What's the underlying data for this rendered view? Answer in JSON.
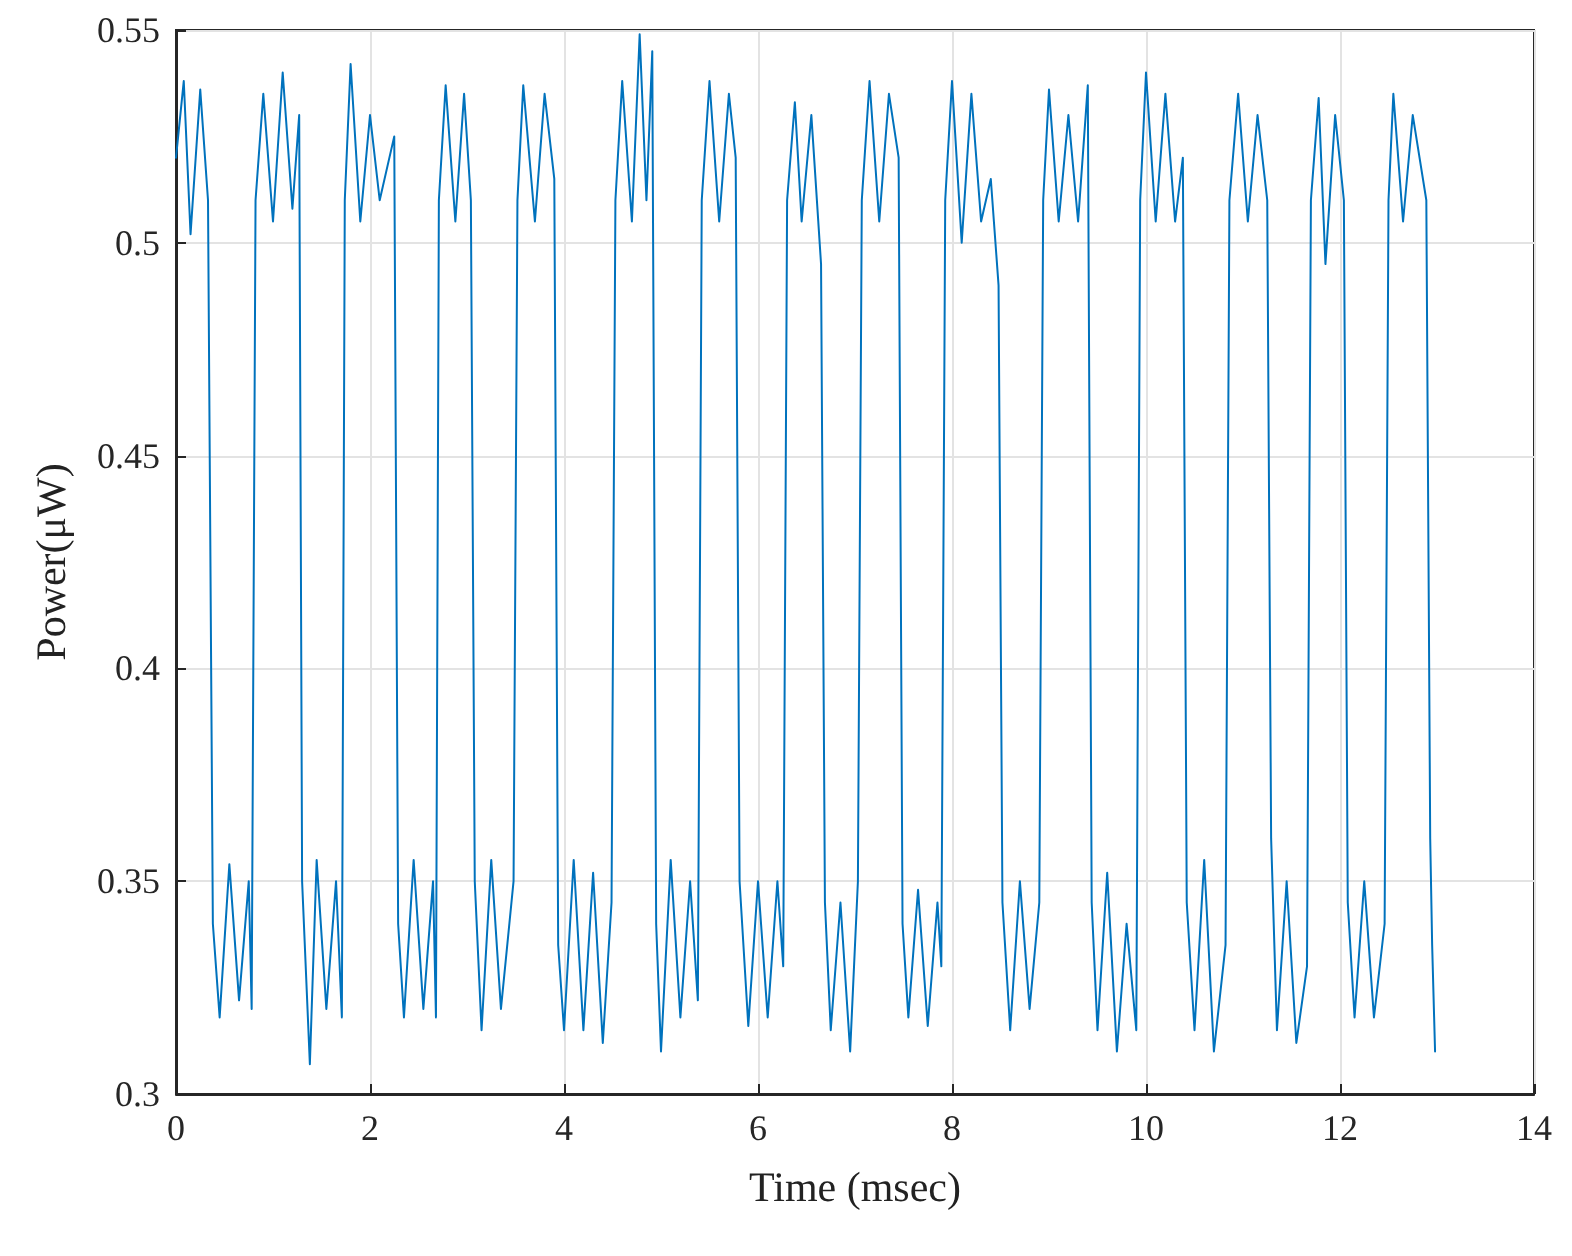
{
  "chart_data": {
    "type": "line",
    "xlabel": "Time (msec)",
    "ylabel": "Power(μW)",
    "x": [
      0,
      0.08,
      0.15,
      0.25,
      0.33,
      0.38,
      0.45,
      0.55,
      0.65,
      0.75,
      0.78,
      0.82,
      0.9,
      1.0,
      1.1,
      1.2,
      1.27,
      1.3,
      1.38,
      1.45,
      1.55,
      1.65,
      1.71,
      1.74,
      1.8,
      1.9,
      2.0,
      2.1,
      2.25,
      2.29,
      2.35,
      2.45,
      2.55,
      2.65,
      2.68,
      2.71,
      2.78,
      2.88,
      2.97,
      3.04,
      3.08,
      3.15,
      3.25,
      3.35,
      3.48,
      3.52,
      3.58,
      3.7,
      3.8,
      3.9,
      3.94,
      4.0,
      4.1,
      4.2,
      4.3,
      4.4,
      4.49,
      4.53,
      4.6,
      4.7,
      4.78,
      4.85,
      4.91,
      4.95,
      5.0,
      5.1,
      5.2,
      5.3,
      5.38,
      5.42,
      5.5,
      5.6,
      5.7,
      5.77,
      5.81,
      5.9,
      6.0,
      6.1,
      6.2,
      6.26,
      6.3,
      6.38,
      6.45,
      6.55,
      6.65,
      6.69,
      6.75,
      6.85,
      6.95,
      7.03,
      7.07,
      7.15,
      7.25,
      7.35,
      7.45,
      7.49,
      7.55,
      7.65,
      7.75,
      7.85,
      7.89,
      7.93,
      8.0,
      8.1,
      8.2,
      8.3,
      8.4,
      8.48,
      8.52,
      8.6,
      8.7,
      8.8,
      8.9,
      8.94,
      9.0,
      9.1,
      9.2,
      9.3,
      9.4,
      9.44,
      9.5,
      9.6,
      9.7,
      9.8,
      9.9,
      9.94,
      10.0,
      10.1,
      10.2,
      10.3,
      10.38,
      10.42,
      10.5,
      10.6,
      10.7,
      10.82,
      10.86,
      10.95,
      11.05,
      11.15,
      11.25,
      11.29,
      11.35,
      11.45,
      11.55,
      11.66,
      11.7,
      11.78,
      11.85,
      11.95,
      12.04,
      12.08,
      12.15,
      12.25,
      12.35,
      12.46,
      12.5,
      12.55,
      12.65,
      12.75,
      12.89,
      12.93,
      12.95,
      12.98
    ],
    "values": [
      0.52,
      0.538,
      0.502,
      0.536,
      0.51,
      0.34,
      0.318,
      0.354,
      0.322,
      0.35,
      0.32,
      0.51,
      0.535,
      0.505,
      0.54,
      0.508,
      0.53,
      0.35,
      0.307,
      0.355,
      0.32,
      0.35,
      0.318,
      0.51,
      0.542,
      0.505,
      0.53,
      0.51,
      0.525,
      0.34,
      0.318,
      0.355,
      0.32,
      0.35,
      0.318,
      0.51,
      0.537,
      0.505,
      0.535,
      0.51,
      0.35,
      0.315,
      0.355,
      0.32,
      0.35,
      0.51,
      0.537,
      0.505,
      0.535,
      0.515,
      0.335,
      0.315,
      0.355,
      0.315,
      0.352,
      0.312,
      0.345,
      0.51,
      0.538,
      0.505,
      0.549,
      0.51,
      0.545,
      0.34,
      0.31,
      0.355,
      0.318,
      0.35,
      0.322,
      0.51,
      0.538,
      0.505,
      0.535,
      0.52,
      0.35,
      0.316,
      0.35,
      0.318,
      0.35,
      0.33,
      0.51,
      0.533,
      0.505,
      0.53,
      0.495,
      0.345,
      0.315,
      0.345,
      0.31,
      0.35,
      0.51,
      0.538,
      0.505,
      0.535,
      0.52,
      0.34,
      0.318,
      0.348,
      0.316,
      0.345,
      0.33,
      0.51,
      0.538,
      0.5,
      0.535,
      0.505,
      0.515,
      0.49,
      0.345,
      0.315,
      0.35,
      0.32,
      0.345,
      0.51,
      0.536,
      0.505,
      0.53,
      0.505,
      0.537,
      0.345,
      0.315,
      0.352,
      0.31,
      0.34,
      0.315,
      0.51,
      0.54,
      0.505,
      0.535,
      0.505,
      0.52,
      0.345,
      0.315,
      0.355,
      0.31,
      0.335,
      0.51,
      0.535,
      0.505,
      0.53,
      0.51,
      0.36,
      0.315,
      0.35,
      0.312,
      0.33,
      0.51,
      0.534,
      0.495,
      0.53,
      0.51,
      0.345,
      0.318,
      0.35,
      0.318,
      0.34,
      0.51,
      0.535,
      0.505,
      0.53,
      0.51,
      0.36,
      0.335,
      0.31
    ],
    "color": "#0072bd",
    "line_style": "solid",
    "xlim": [
      0,
      14
    ],
    "xticks": [
      0,
      2,
      4,
      6,
      8,
      10,
      12,
      14
    ],
    "ylim": [
      0.3,
      0.55
    ],
    "yticks": [
      0.3,
      0.35,
      0.4,
      0.45,
      0.5,
      0.55
    ],
    "grid": true
  }
}
